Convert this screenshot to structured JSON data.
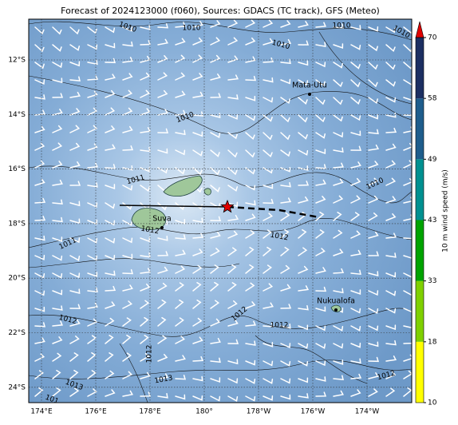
{
  "title": "Forecast of 2024123000 (f060), Sources: GDACS (TC track), GFS (Meteo)",
  "map": {
    "lon_labels": [
      "174°E",
      "176°E",
      "178°E",
      "180°",
      "178°W",
      "176°W",
      "174°W"
    ],
    "lat_labels": [
      "12°S",
      "14°S",
      "16°S",
      "18°S",
      "20°S",
      "22°S",
      "24°S"
    ],
    "places": [
      "Mata-Utu",
      "Suva",
      "Nukualofa"
    ],
    "contour_labels": [
      "1010",
      "1010",
      "1010",
      "1010",
      "1010",
      "1010",
      "1011",
      "1010",
      "1012",
      "1011",
      "1012",
      "1012",
      "1012",
      "1012",
      "1012",
      "1013",
      "1013",
      "1012",
      "101"
    ]
  },
  "colorbar": {
    "label": "10 m wind speed (m/s)",
    "levels": [
      10,
      18,
      33,
      43,
      49,
      58,
      70
    ],
    "colors": [
      "#ffff00",
      "#7fd000",
      "#00a300",
      "#009090",
      "#1e5d8c",
      "#1c2f62"
    ],
    "extend_color": "#e00000"
  }
}
